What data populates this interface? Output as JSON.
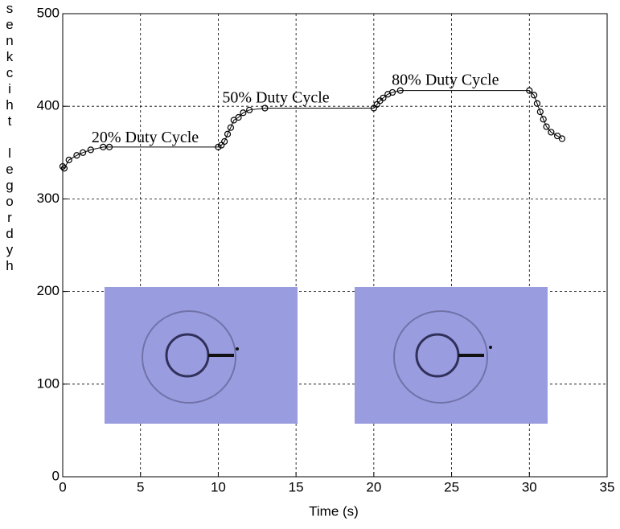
{
  "chart_data": {
    "type": "line",
    "x_label": "Time (s)",
    "y_label": "senkciht legordyh",
    "xlim": [
      0,
      35
    ],
    "xticks": [
      0,
      5,
      10,
      15,
      20,
      25,
      30,
      35
    ],
    "ylim": [
      0,
      500
    ],
    "yticks": [
      0,
      100,
      200,
      300,
      400,
      500
    ],
    "grid": true,
    "annotations": [
      {
        "text": "20% Duty Cycle",
        "x": 5.3,
        "y": 365
      },
      {
        "text": "50% Duty Cycle",
        "x": 13.7,
        "y": 408
      },
      {
        "text": "80% Duty Cycle",
        "x": 24.6,
        "y": 427
      }
    ],
    "series": [
      {
        "color": "#000000",
        "x": [
          0,
          0.1,
          0.4,
          0.9,
          1.3,
          1.8,
          2.6,
          3.0,
          10.0,
          10.2,
          10.4,
          10.6,
          10.8,
          11.0,
          11.3,
          11.6,
          12.0,
          13.0,
          20.0,
          20.2,
          20.4,
          20.6,
          20.9,
          21.2,
          21.7,
          30.0,
          30.3,
          30.5,
          30.7,
          30.9,
          31.1,
          31.4,
          31.8,
          32.1
        ],
        "values": [
          335,
          333,
          342,
          347,
          350,
          353,
          356,
          356,
          356,
          358,
          362,
          370,
          377,
          385,
          388,
          393,
          396,
          398,
          398,
          402,
          406,
          409,
          413,
          415,
          417,
          417,
          412,
          403,
          394,
          386,
          378,
          372,
          368,
          365
        ]
      }
    ]
  }
}
